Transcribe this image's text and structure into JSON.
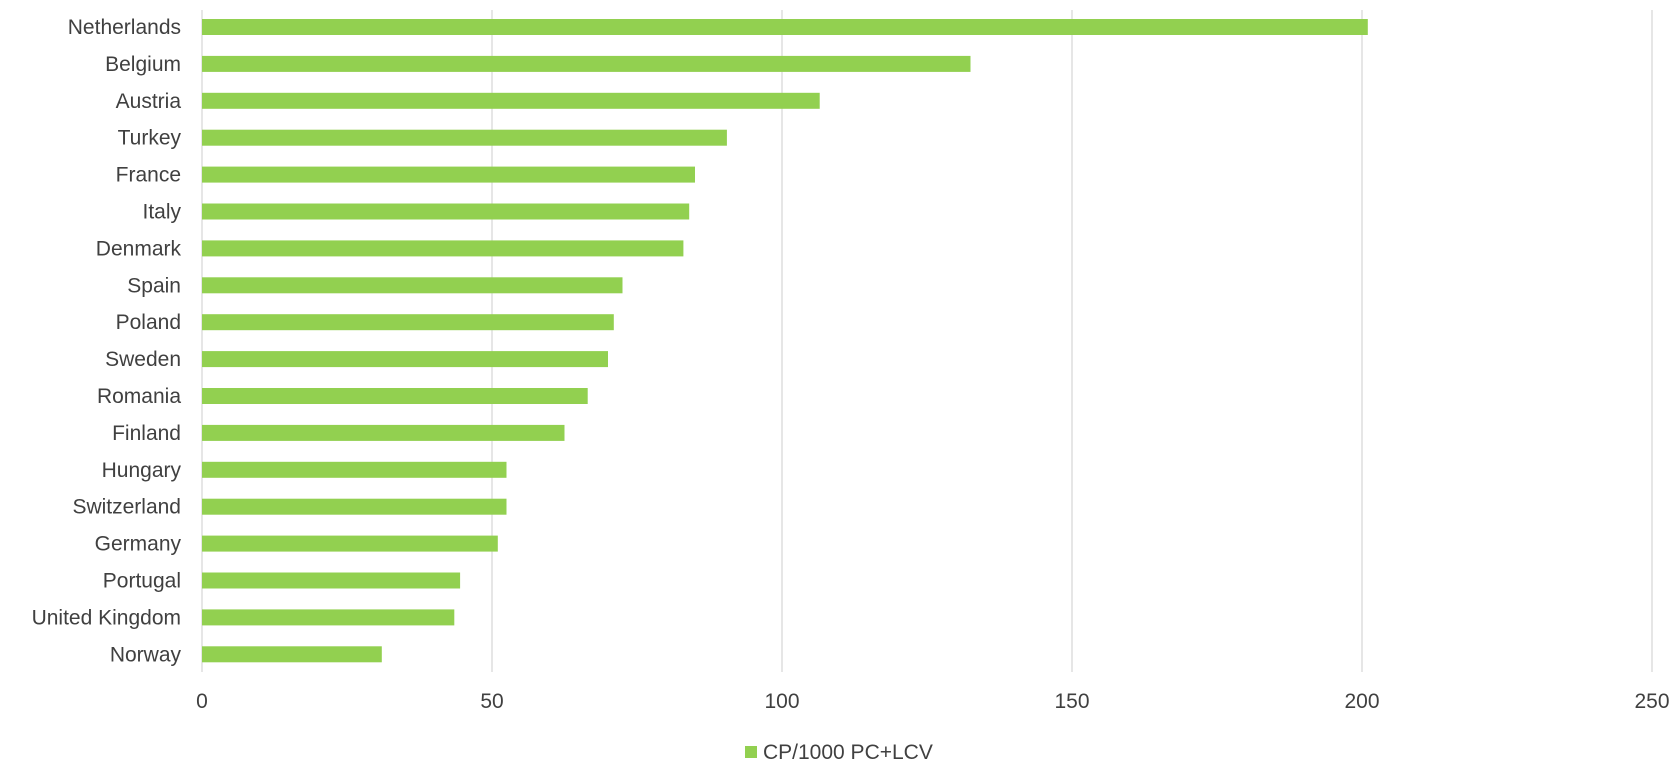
{
  "chart_data": {
    "type": "bar",
    "orientation": "horizontal",
    "title": "",
    "xlabel": "",
    "ylabel": "",
    "categories": [
      "Netherlands",
      "Belgium",
      "Austria",
      "Turkey",
      "France",
      "Italy",
      "Denmark",
      "Spain",
      "Poland",
      "Sweden",
      "Romania",
      "Finland",
      "Hungary",
      "Switzerland",
      "Germany",
      "Portugal",
      "United Kingdom",
      "Norway"
    ],
    "series": [
      {
        "name": "CP/1000 PC+LCV",
        "color": "#92d050",
        "values": [
          201,
          132.5,
          106.5,
          90.5,
          85,
          84,
          83,
          72.5,
          71,
          70,
          66.5,
          62.5,
          52.5,
          52.5,
          51,
          44.5,
          43.5,
          31
        ]
      }
    ],
    "xlim": [
      0,
      250
    ],
    "xticks": [
      "0",
      "50",
      "100",
      "150",
      "200",
      "250"
    ],
    "grid": "vertical",
    "legend_position": "bottom"
  }
}
